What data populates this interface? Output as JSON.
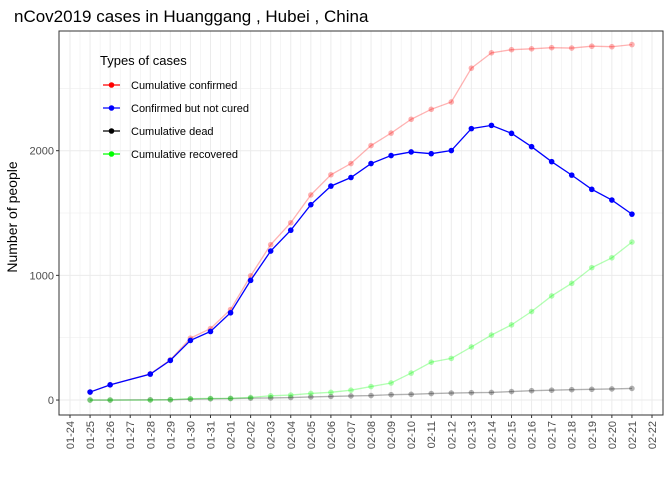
{
  "chart_data": {
    "type": "line",
    "title": "nCov2019 cases in Huanggang , Hubei , China",
    "xlabel": "",
    "ylabel": "Number of people",
    "x_ticks": [
      "01-24",
      "01-25",
      "01-26",
      "01-27",
      "01-28",
      "01-29",
      "01-30",
      "01-31",
      "02-01",
      "02-02",
      "02-03",
      "02-04",
      "02-05",
      "02-06",
      "02-07",
      "02-08",
      "02-09",
      "02-10",
      "02-11",
      "02-12",
      "02-13",
      "02-14",
      "02-15",
      "02-16",
      "02-17",
      "02-18",
      "02-19",
      "02-20",
      "02-21",
      "02-22"
    ],
    "y_ticks": [
      0,
      1000,
      2000
    ],
    "xlim": [
      "01-24",
      "02-22"
    ],
    "ylim": [
      -120,
      2960
    ],
    "grid": true,
    "legend": {
      "title": "Types of cases",
      "placement": "top-left",
      "entries": [
        {
          "label": "Cumulative confirmed",
          "color": "#ff0000"
        },
        {
          "label": "Confirmed but not cured",
          "color": "#0000ff"
        },
        {
          "label": "Cumulative dead",
          "color": "#000000"
        },
        {
          "label": "Cumulative recovered",
          "color": "#00ff00"
        }
      ]
    },
    "series": [
      {
        "name": "Cumulative confirmed",
        "color": "#ff0000",
        "opacity": 0.3,
        "x": [
          "01-25",
          "01-26",
          "01-28",
          "01-29",
          "01-30",
          "01-31",
          "02-01",
          "02-02",
          "02-03",
          "02-04",
          "02-05",
          "02-06",
          "02-07",
          "02-08",
          "02-09",
          "02-10",
          "02-11",
          "02-12",
          "02-13",
          "02-14",
          "02-15",
          "02-16",
          "02-17",
          "02-18",
          "02-19",
          "02-20",
          "02-21"
        ],
        "values": [
          64,
          122,
          210,
          323,
          496,
          573,
          726,
          996,
          1246,
          1422,
          1645,
          1807,
          1897,
          2041,
          2141,
          2252,
          2332,
          2391,
          2662,
          2785,
          2810,
          2817,
          2826,
          2823,
          2838,
          2834,
          2851
        ]
      },
      {
        "name": "Confirmed but not cured",
        "color": "#0000ff",
        "opacity": 1,
        "x": [
          "01-25",
          "01-26",
          "01-28",
          "01-29",
          "01-30",
          "01-31",
          "02-01",
          "02-02",
          "02-03",
          "02-04",
          "02-05",
          "02-06",
          "02-07",
          "02-08",
          "02-09",
          "02-10",
          "02-11",
          "02-12",
          "02-13",
          "02-14",
          "02-15",
          "02-16",
          "02-17",
          "02-18",
          "02-19",
          "02-20",
          "02-21"
        ],
        "values": [
          64,
          122,
          208,
          318,
          478,
          550,
          700,
          960,
          1195,
          1362,
          1567,
          1716,
          1785,
          1897,
          1961,
          1990,
          1976,
          2001,
          2177,
          2203,
          2139,
          2032,
          1912,
          1804,
          1690,
          1604,
          1491
        ]
      },
      {
        "name": "Cumulative dead",
        "color": "#000000",
        "opacity": 0.3,
        "x": [
          "01-25",
          "01-26",
          "01-28",
          "01-29",
          "01-30",
          "01-31",
          "02-01",
          "02-02",
          "02-03",
          "02-04",
          "02-05",
          "02-06",
          "02-07",
          "02-08",
          "02-09",
          "02-10",
          "02-11",
          "02-12",
          "02-13",
          "02-14",
          "02-15",
          "02-16",
          "02-17",
          "02-18",
          "02-19",
          "02-20",
          "02-21"
        ],
        "values": [
          0,
          0,
          2,
          2,
          7,
          10,
          12,
          15,
          17,
          20,
          25,
          29,
          33,
          36,
          43,
          46,
          52,
          56,
          59,
          61,
          68,
          75,
          79,
          83,
          86,
          89,
          93
        ]
      },
      {
        "name": "Cumulative recovered",
        "color": "#00ff00",
        "opacity": 0.3,
        "x": [
          "01-25",
          "01-26",
          "01-28",
          "01-29",
          "01-30",
          "01-31",
          "02-01",
          "02-02",
          "02-03",
          "02-04",
          "02-05",
          "02-06",
          "02-07",
          "02-08",
          "02-09",
          "02-10",
          "02-11",
          "02-12",
          "02-13",
          "02-14",
          "02-15",
          "02-16",
          "02-17",
          "02-18",
          "02-19",
          "02-20",
          "02-21"
        ],
        "values": [
          0,
          0,
          0,
          3,
          11,
          13,
          14,
          21,
          34,
          40,
          53,
          62,
          79,
          108,
          137,
          216,
          304,
          334,
          426,
          521,
          603,
          710,
          835,
          936,
          1062,
          1141,
          1267
        ]
      }
    ]
  }
}
